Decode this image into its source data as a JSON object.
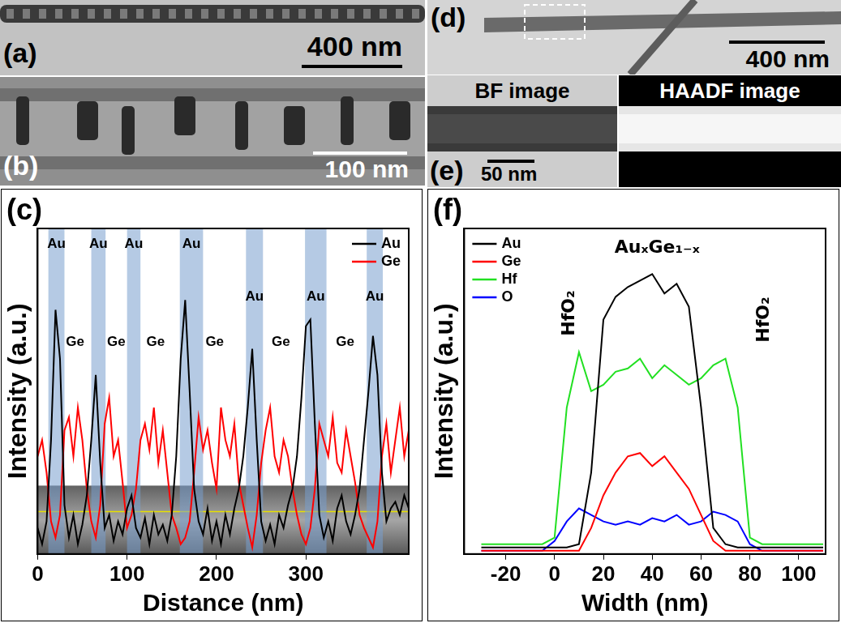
{
  "images": [
    {
      "panel": "(a)",
      "scale_bar": "400 nm"
    },
    {
      "panel": "(b)",
      "scale_bar": "100 nm"
    },
    {
      "panel": "(d)",
      "scale_bar": "400 nm"
    },
    {
      "panel": "(e)",
      "scale_bar": "50 nm",
      "captions": [
        "BF image",
        "HAADF image"
      ]
    }
  ],
  "chart_data": [
    {
      "panel": "(c)",
      "type": "line",
      "x_label": "Distance (nm)",
      "y_label": "Intensity (a.u.)",
      "x": [
        0,
        5,
        10,
        15,
        20,
        25,
        30,
        35,
        40,
        45,
        50,
        55,
        60,
        65,
        70,
        75,
        80,
        85,
        90,
        95,
        100,
        105,
        110,
        115,
        120,
        125,
        130,
        135,
        140,
        145,
        150,
        155,
        160,
        165,
        170,
        175,
        180,
        185,
        190,
        195,
        200,
        205,
        210,
        215,
        220,
        225,
        230,
        235,
        240,
        245,
        250,
        255,
        260,
        265,
        270,
        275,
        280,
        285,
        290,
        295,
        300,
        305,
        310,
        315,
        320,
        325,
        330,
        335,
        340,
        345,
        350,
        355,
        360,
        365,
        370,
        375,
        380,
        385,
        390,
        395,
        400,
        405,
        410,
        415
      ],
      "series": [
        {
          "name": "Au",
          "color": "#000000",
          "values": [
            8,
            3,
            10,
            35,
            75,
            60,
            15,
            5,
            12,
            3,
            9,
            18,
            35,
            55,
            28,
            8,
            12,
            4,
            10,
            6,
            14,
            18,
            8,
            5,
            11,
            3,
            12,
            6,
            9,
            4,
            12,
            30,
            60,
            78,
            50,
            20,
            10,
            6,
            14,
            4,
            10,
            3,
            12,
            6,
            14,
            20,
            30,
            45,
            63,
            35,
            10,
            4,
            9,
            3,
            12,
            8,
            15,
            20,
            30,
            48,
            70,
            72,
            40,
            12,
            5,
            10,
            4,
            14,
            18,
            10,
            6,
            12,
            20,
            35,
            50,
            67,
            55,
            25,
            10,
            14,
            16,
            12,
            18,
            14
          ]
        },
        {
          "name": "Ge",
          "color": "#ff0000",
          "values": [
            30,
            35,
            25,
            10,
            5,
            12,
            38,
            42,
            30,
            45,
            35,
            20,
            10,
            5,
            15,
            40,
            48,
            30,
            35,
            22,
            8,
            12,
            20,
            35,
            40,
            32,
            45,
            28,
            38,
            25,
            12,
            8,
            3,
            5,
            10,
            25,
            42,
            32,
            38,
            28,
            20,
            45,
            35,
            30,
            40,
            22,
            15,
            8,
            2,
            12,
            28,
            38,
            45,
            30,
            25,
            35,
            30,
            20,
            12,
            6,
            3,
            8,
            20,
            40,
            35,
            30,
            42,
            28,
            25,
            38,
            30,
            22,
            12,
            8,
            5,
            2,
            10,
            30,
            40,
            25,
            35,
            45,
            30,
            38
          ]
        }
      ],
      "xlim": [
        0,
        415
      ],
      "xticks": [
        0,
        100,
        200,
        300
      ],
      "ylim": [
        0,
        100
      ],
      "tick_labels": "x",
      "grid": false,
      "legend": "upper right",
      "bands": [
        [
          12,
          30
        ],
        [
          60,
          76
        ],
        [
          100,
          115
        ],
        [
          159,
          185
        ],
        [
          233,
          252
        ],
        [
          299,
          323
        ],
        [
          368,
          386
        ]
      ],
      "annotations": [
        {
          "text": "Au",
          "x": 21,
          "y": 93
        },
        {
          "text": "Au",
          "x": 68,
          "y": 93
        },
        {
          "text": "Au",
          "x": 107.5,
          "y": 93
        },
        {
          "text": "Au",
          "x": 172,
          "y": 93
        },
        {
          "text": "Au",
          "x": 242.5,
          "y": 77
        },
        {
          "text": "Au",
          "x": 311,
          "y": 77
        },
        {
          "text": "Au",
          "x": 377,
          "y": 77
        },
        {
          "text": "Ge",
          "x": 42,
          "y": 63
        },
        {
          "text": "Ge",
          "x": 88,
          "y": 63
        },
        {
          "text": "Ge",
          "x": 132,
          "y": 63
        },
        {
          "text": "Ge",
          "x": 198,
          "y": 63
        },
        {
          "text": "Ge",
          "x": 272,
          "y": 63
        },
        {
          "text": "Ge",
          "x": 344,
          "y": 63
        }
      ]
    },
    {
      "panel": "(f)",
      "type": "line",
      "x_label": "Width (nm)",
      "y_label": "Intensity (a.u.)",
      "x": [
        -30,
        -25,
        -20,
        -15,
        -10,
        -5,
        0,
        5,
        10,
        15,
        20,
        25,
        30,
        35,
        40,
        45,
        50,
        55,
        60,
        65,
        70,
        75,
        80,
        85,
        90,
        95,
        100,
        105,
        110
      ],
      "series": [
        {
          "name": "Au",
          "color": "#000000",
          "values": [
            2,
            2,
            2,
            2,
            2,
            2,
            2,
            2,
            3,
            25,
            72,
            79,
            82,
            84,
            86,
            80,
            83,
            76,
            45,
            8,
            3,
            2,
            2,
            2,
            2,
            2,
            2,
            2,
            2
          ]
        },
        {
          "name": "Ge",
          "color": "#ff0000",
          "values": [
            1,
            1,
            1,
            1,
            1,
            1,
            1,
            1,
            1,
            8,
            18,
            25,
            30,
            31,
            27,
            30,
            25,
            20,
            12,
            4,
            1,
            1,
            1,
            1,
            1,
            1,
            1,
            1,
            1
          ]
        },
        {
          "name": "Hf",
          "color": "#22e022",
          "values": [
            3,
            3,
            3,
            3,
            3,
            3,
            5,
            45,
            62,
            50,
            52,
            56,
            57,
            60,
            54,
            58,
            55,
            52,
            54,
            58,
            60,
            45,
            5,
            3,
            3,
            3,
            3,
            3,
            3
          ]
        },
        {
          "name": "O",
          "color": "#0000ff",
          "values": [
            1,
            1,
            1,
            1,
            1,
            1,
            4,
            10,
            14,
            12,
            10,
            9,
            10,
            9,
            11,
            10,
            12,
            9,
            10,
            13,
            12,
            10,
            3,
            1,
            1,
            1,
            1,
            1,
            1
          ]
        }
      ],
      "xlim": [
        -37,
        111
      ],
      "xticks": [
        -20,
        0,
        20,
        40,
        60,
        80,
        100
      ],
      "ylim": [
        0,
        100
      ],
      "tick_labels": "x",
      "grid": false,
      "legend": "upper left",
      "annotations": [
        {
          "text": "AuₓGe₁₋ₓ",
          "x": 42,
          "y": 94
        }
      ],
      "vertical_labels": [
        {
          "text": "HfO₂",
          "x": 6,
          "y": 74
        },
        {
          "text": "HfO₂",
          "x": 86,
          "y": 72
        }
      ]
    }
  ]
}
